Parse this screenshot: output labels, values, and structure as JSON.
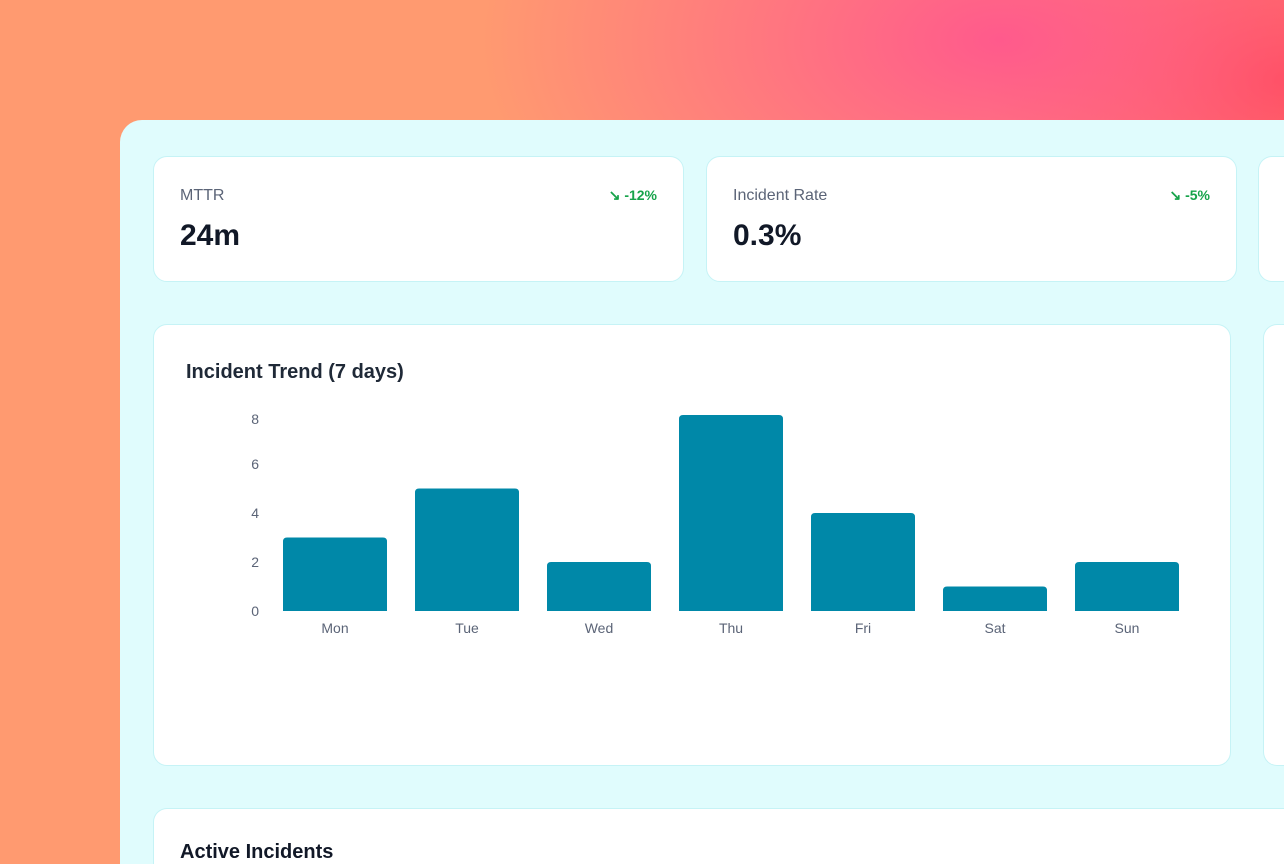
{
  "kpis": [
    {
      "label": "MTTR",
      "value": "24m",
      "delta": "-12%",
      "trend_icon": "trending-down-icon"
    },
    {
      "label": "Incident Rate",
      "value": "0.3%",
      "delta": "-5%",
      "trend_icon": "trending-down-icon"
    }
  ],
  "colors": {
    "bar": "#0088a8",
    "positive_delta": "#16a34a",
    "panel": "#e0fcfd"
  },
  "chart_data": {
    "type": "bar",
    "title": "Incident Trend (7 days)",
    "categories": [
      "Mon",
      "Tue",
      "Wed",
      "Thu",
      "Fri",
      "Sat",
      "Sun"
    ],
    "values": [
      3,
      5,
      2,
      8,
      4,
      1,
      2
    ],
    "yticks": [
      0,
      2,
      4,
      6,
      8
    ],
    "ylim": [
      0,
      8
    ],
    "grid": false
  },
  "active_incidents": {
    "title": "Active Incidents"
  }
}
